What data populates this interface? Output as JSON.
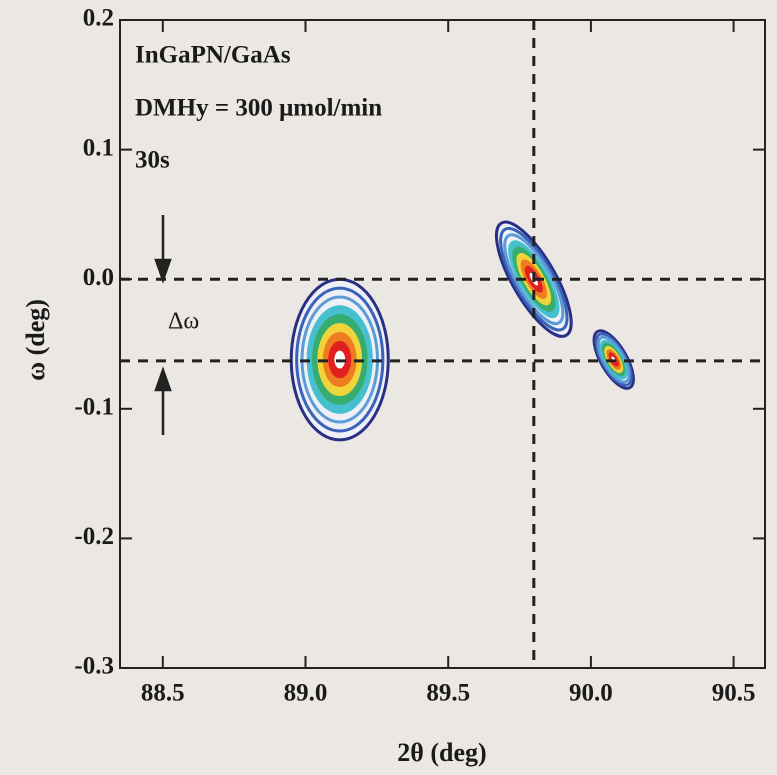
{
  "chart_data": {
    "type": "contour",
    "x_label": "2θ (deg)",
    "y_label": "ω (deg)",
    "annotations": [
      "InGaPN/GaAs",
      "DMHy = 300 μmol/min",
      "30s"
    ],
    "delta_label": "Δω",
    "xlim": [
      88.35,
      90.61
    ],
    "ylim": [
      -0.3,
      0.2
    ],
    "xticks": [
      88.5,
      {
        "value": 89,
        "label": "89.0"
      },
      89.5,
      {
        "value": 90,
        "label": "90.0"
      },
      90.5
    ],
    "yticks": [
      0.2,
      0.1,
      {
        "value": 0,
        "label": "0.0"
      },
      -0.1,
      -0.2,
      -0.3
    ],
    "reference_lines": {
      "x": [
        89.8
      ],
      "y": [
        0,
        -0.063
      ]
    },
    "colors": [
      "#2a2f86",
      "#3a62b8",
      "#5b9bd6",
      "#46c0cf",
      "#36ad6e",
      "#f0d43a",
      "#f07c22",
      "#e01f1f"
    ],
    "peaks": [
      {
        "x": 89.12,
        "y": -0.062,
        "rx": 0.17,
        "ry": 0.062,
        "angle": 0
      },
      {
        "x": 89.8,
        "y": 0.0,
        "rx": 0.075,
        "ry": 0.05,
        "angle": -30
      },
      {
        "x": 90.08,
        "y": -0.062,
        "rx": 0.045,
        "ry": 0.025,
        "angle": -30
      }
    ]
  }
}
